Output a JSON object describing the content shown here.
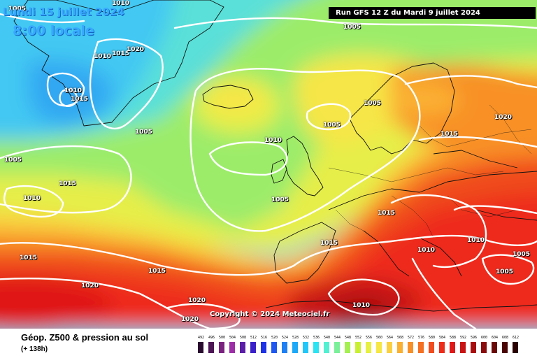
{
  "header": {
    "date": "Lundi 15 juillet 2024",
    "time": "8:00 locale",
    "run": "Run GFS 12 Z du Mardi 9 juillet 2024"
  },
  "copyright": "Copyright © 2024 Meteociel.fr",
  "footer": {
    "title": "Géop. Z500 & pression au sol",
    "subtitle": "(+ 138h)"
  },
  "isobar_labels": [
    "1005",
    "1010",
    "1015",
    "1020",
    "1010",
    "1015",
    "1005",
    "1010",
    "1015",
    "1005",
    "1010",
    "1005",
    "1015",
    "1010",
    "1005",
    "1005",
    "1015",
    "1015",
    "1020",
    "1020",
    "1020",
    "1015",
    "1005",
    "1015",
    "1020",
    "1010",
    "1010",
    "1005",
    "1005",
    "1010",
    "1020",
    "1020",
    "1010",
    "1005",
    "1005",
    "1010"
  ],
  "legend": {
    "values": [
      "492",
      "496",
      "500",
      "504",
      "508",
      "512",
      "516",
      "520",
      "524",
      "528",
      "532",
      "536",
      "540",
      "544",
      "548",
      "552",
      "556",
      "560",
      "564",
      "568",
      "572",
      "576",
      "580",
      "584",
      "588",
      "592",
      "596",
      "600",
      "604",
      "608",
      "612"
    ],
    "colors": [
      "#2a0b30",
      "#4e1556",
      "#7a2280",
      "#9e2ea8",
      "#5c1ea8",
      "#3a22c8",
      "#1e32e6",
      "#1e58f0",
      "#1e80f5",
      "#1ea8f8",
      "#20c8fa",
      "#2ae4f4",
      "#52f0d2",
      "#7af09a",
      "#a4f050",
      "#c8f030",
      "#e6f040",
      "#f6e646",
      "#fad040",
      "#fab030",
      "#f89028",
      "#f47022",
      "#f04c1e",
      "#ee2c1a",
      "#e01818",
      "#c81414",
      "#a81010",
      "#8a0c0c",
      "#6a0808",
      "#4a0404",
      "#2a0000"
    ]
  }
}
